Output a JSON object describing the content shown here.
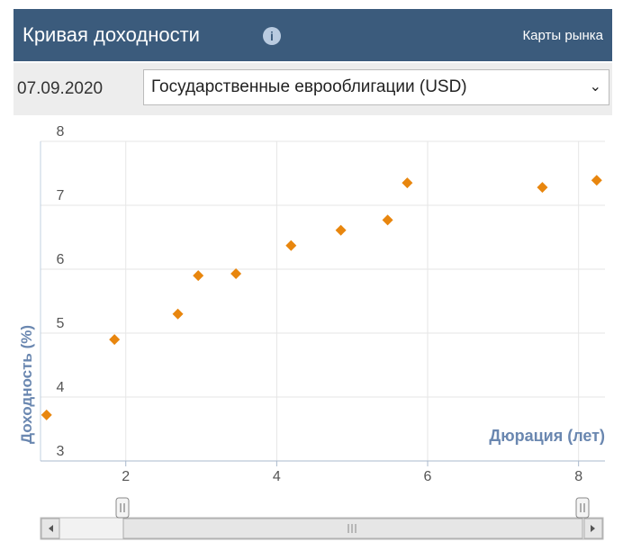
{
  "header": {
    "title": "Кривая доходности",
    "link": "Карты рынка"
  },
  "filters": {
    "date": "07.09.2020",
    "select": "Государственные еврооблигации (USD)"
  },
  "chart_data": {
    "type": "scatter",
    "y_label": "Доходность (%)",
    "x_label": "Дюрация (лет)",
    "x": [
      0.95,
      1.85,
      2.69,
      2.96,
      3.46,
      4.19,
      4.85,
      5.47,
      5.73,
      7.52,
      8.24
    ],
    "values": [
      3.72,
      4.9,
      5.3,
      5.9,
      5.93,
      6.37,
      6.61,
      6.77,
      7.35,
      7.28,
      7.39
    ],
    "color": "#e8860e",
    "xlim": [
      0.87,
      8.35
    ],
    "ylim": [
      3,
      8
    ],
    "xticks": [
      2,
      4,
      6,
      8
    ],
    "yticks": [
      3,
      4,
      5,
      6,
      7,
      8
    ],
    "grid": true
  }
}
